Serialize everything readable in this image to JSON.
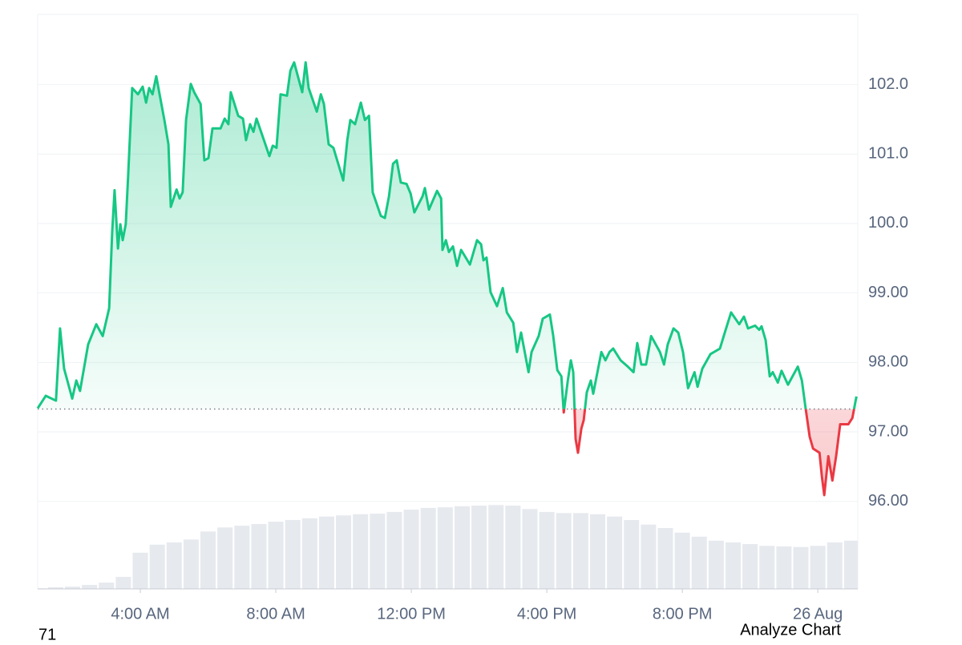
{
  "chart_data": {
    "type": "line",
    "x": [
      0.97,
      1.21,
      1.51,
      1.63,
      1.75,
      1.99,
      2.11,
      2.22,
      2.46,
      2.7,
      2.89,
      3.08,
      3.17,
      3.24,
      3.34,
      3.41,
      3.48,
      3.57,
      3.64,
      3.76,
      3.93,
      4.07,
      4.17,
      4.26,
      4.36,
      4.47,
      4.71,
      4.83,
      4.9,
      5.07,
      5.16,
      5.25,
      5.35,
      5.49,
      5.59,
      5.78,
      5.89,
      6.01,
      6.13,
      6.37,
      6.49,
      6.6,
      6.67,
      6.89,
      7.03,
      7.12,
      7.24,
      7.34,
      7.43,
      7.67,
      7.81,
      7.91,
      8.02,
      8.14,
      8.33,
      8.43,
      8.54,
      8.78,
      8.88,
      8.97,
      9.21,
      9.33,
      9.42,
      9.56,
      9.7,
      9.99,
      10.11,
      10.2,
      10.34,
      10.51,
      10.63,
      10.75,
      10.86,
      11.1,
      11.22,
      11.34,
      11.46,
      11.57,
      11.69,
      11.86,
      11.98,
      12.09,
      12.33,
      12.4,
      12.52,
      12.76,
      12.88,
      12.92,
      13.02,
      13.11,
      13.23,
      13.35,
      13.47,
      13.73,
      13.94,
      14.06,
      14.13,
      14.22,
      14.34,
      14.53,
      14.7,
      14.82,
      15.01,
      15.12,
      15.24,
      15.46,
      15.55,
      15.76,
      15.88,
      16.09,
      16.19,
      16.31,
      16.43,
      16.5,
      16.62,
      16.71,
      16.78,
      16.85,
      16.92,
      17.02,
      17.09,
      17.18,
      17.3,
      17.37,
      17.61,
      17.73,
      17.85,
      17.96,
      18.18,
      18.39,
      18.56,
      18.67,
      18.79,
      18.93,
      19.08,
      19.34,
      19.46,
      19.57,
      19.74,
      19.88,
      20.02,
      20.17,
      20.36,
      20.45,
      20.59,
      20.83,
      21.11,
      21.28,
      21.44,
      21.68,
      21.82,
      21.94,
      22.15,
      22.27,
      22.34,
      22.46,
      22.58,
      22.67,
      22.82,
      22.93,
      23.12,
      23.41,
      23.53,
      23.64,
      23.76,
      23.86,
      24.05,
      24.12,
      24.19,
      24.31,
      24.43,
      24.54,
      24.66,
      24.9,
      25.02,
      25.14
    ],
    "series": [
      {
        "color": "#16c784",
        "down_color": "#ea3943",
        "values": [
          97.34,
          97.52,
          97.45,
          98.49,
          97.91,
          97.48,
          97.74,
          97.59,
          98.26,
          98.55,
          98.38,
          98.78,
          99.88,
          100.48,
          99.64,
          99.99,
          99.76,
          99.99,
          100.68,
          101.95,
          101.86,
          101.97,
          101.74,
          101.95,
          101.86,
          102.12,
          101.49,
          101.14,
          100.24,
          100.49,
          100.36,
          100.45,
          101.49,
          102.01,
          101.89,
          101.72,
          100.91,
          100.94,
          101.37,
          101.37,
          101.51,
          101.43,
          101.89,
          101.55,
          101.51,
          101.2,
          101.43,
          101.32,
          101.51,
          101.17,
          100.97,
          101.12,
          101.09,
          101.86,
          101.84,
          102.2,
          102.32,
          101.89,
          102.32,
          101.95,
          101.61,
          101.86,
          101.72,
          101.14,
          101.09,
          100.62,
          101.2,
          101.49,
          101.43,
          101.74,
          101.49,
          101.55,
          100.45,
          100.11,
          100.08,
          100.39,
          100.86,
          100.91,
          100.59,
          100.57,
          100.43,
          100.16,
          100.39,
          100.51,
          100.2,
          100.47,
          100.36,
          99.62,
          99.76,
          99.59,
          99.67,
          99.39,
          99.62,
          99.41,
          99.76,
          99.7,
          99.47,
          99.51,
          99.01,
          98.81,
          99.07,
          98.72,
          98.57,
          98.15,
          98.43,
          97.86,
          98.15,
          98.38,
          98.63,
          98.69,
          98.38,
          97.89,
          97.8,
          97.28,
          97.74,
          98.03,
          97.86,
          96.9,
          96.7,
          97.05,
          97.17,
          97.57,
          97.74,
          97.55,
          98.15,
          98.03,
          98.15,
          98.2,
          98.03,
          97.94,
          97.86,
          98.28,
          97.97,
          97.97,
          98.38,
          98.15,
          97.97,
          98.26,
          98.49,
          98.43,
          98.15,
          97.63,
          97.86,
          97.65,
          97.91,
          98.12,
          98.2,
          98.47,
          98.72,
          98.55,
          98.66,
          98.49,
          98.53,
          98.47,
          98.52,
          98.32,
          97.8,
          97.86,
          97.71,
          97.88,
          97.68,
          97.94,
          97.74,
          97.34,
          96.93,
          96.76,
          96.7,
          96.36,
          96.09,
          96.65,
          96.3,
          96.65,
          97.11,
          97.11,
          97.2,
          97.51
        ]
      }
    ],
    "baseline": 97.33,
    "volume": {
      "color": "#e6e9ee",
      "axis": "y2",
      "x": [
        1.0,
        1.5,
        2.0,
        2.5,
        3.0,
        3.5,
        4.0,
        4.5,
        5.0,
        5.5,
        6.0,
        6.5,
        7.0,
        7.5,
        8.0,
        8.5,
        9.0,
        9.5,
        10.0,
        10.5,
        11.0,
        11.5,
        12.0,
        12.5,
        13.0,
        13.5,
        14.0,
        14.5,
        15.0,
        15.5,
        16.0,
        16.5,
        17.0,
        17.5,
        18.0,
        18.5,
        19.0,
        19.5,
        20.0,
        20.5,
        21.0,
        21.5,
        22.0,
        22.5,
        23.0,
        23.5,
        24.0,
        24.5,
        25.0
      ],
      "values": [
        0.1,
        0.3,
        0.4,
        0.7,
        1.1,
        2.1,
        6.3,
        7.7,
        8.1,
        8.6,
        10.0,
        10.7,
        11.0,
        11.3,
        11.7,
        12.0,
        12.3,
        12.6,
        12.8,
        13.0,
        13.1,
        13.4,
        13.8,
        14.1,
        14.2,
        14.4,
        14.5,
        14.6,
        14.5,
        13.9,
        13.4,
        13.2,
        13.2,
        13.0,
        12.6,
        12.0,
        11.2,
        10.6,
        9.8,
        9.1,
        8.4,
        8.1,
        7.8,
        7.5,
        7.4,
        7.3,
        7.5,
        8.1,
        8.4
      ]
    },
    "xlim": [
      0.97,
      25.18
    ],
    "xticks": [
      {
        "value": 4,
        "label": "4:00 AM"
      },
      {
        "value": 8,
        "label": "8:00 AM"
      },
      {
        "value": 12,
        "label": "12:00 PM"
      },
      {
        "value": 16,
        "label": "4:00 PM"
      },
      {
        "value": 20,
        "label": "8:00 PM"
      },
      {
        "value": 24,
        "label": "26 Aug"
      }
    ],
    "ylim": [
      94.74,
      103.01
    ],
    "yticks": [
      {
        "value": 102,
        "label": "102.0"
      },
      {
        "value": 101,
        "label": "101.0"
      },
      {
        "value": 100,
        "label": "100.0"
      },
      {
        "value": 99,
        "label": "99.00"
      },
      {
        "value": 98,
        "label": "98.00"
      },
      {
        "value": 97,
        "label": "97.00"
      },
      {
        "value": 96,
        "label": "96.00"
      }
    ],
    "y2lim": [
      0,
      100
    ],
    "grid": true
  },
  "footer": {
    "left_text": "71",
    "button": "Analyze Chart"
  }
}
